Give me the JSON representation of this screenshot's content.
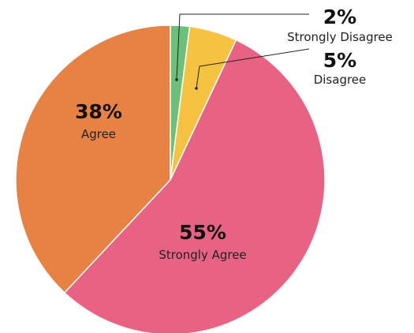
{
  "chart_data": {
    "type": "pie",
    "start_angle_deg": 0,
    "direction": "clockwise",
    "slices": [
      {
        "label": "Strongly Disagree",
        "value": 2,
        "display": "2%",
        "color": "#6cc07a"
      },
      {
        "label": "Disagree",
        "value": 5,
        "display": "5%",
        "color": "#f5c242"
      },
      {
        "label": "Strongly Agree",
        "value": 55,
        "display": "55%",
        "color": "#e86283"
      },
      {
        "label": "Agree",
        "value": 38,
        "display": "38%",
        "color": "#e88144"
      }
    ],
    "title": "",
    "legend": "none"
  }
}
